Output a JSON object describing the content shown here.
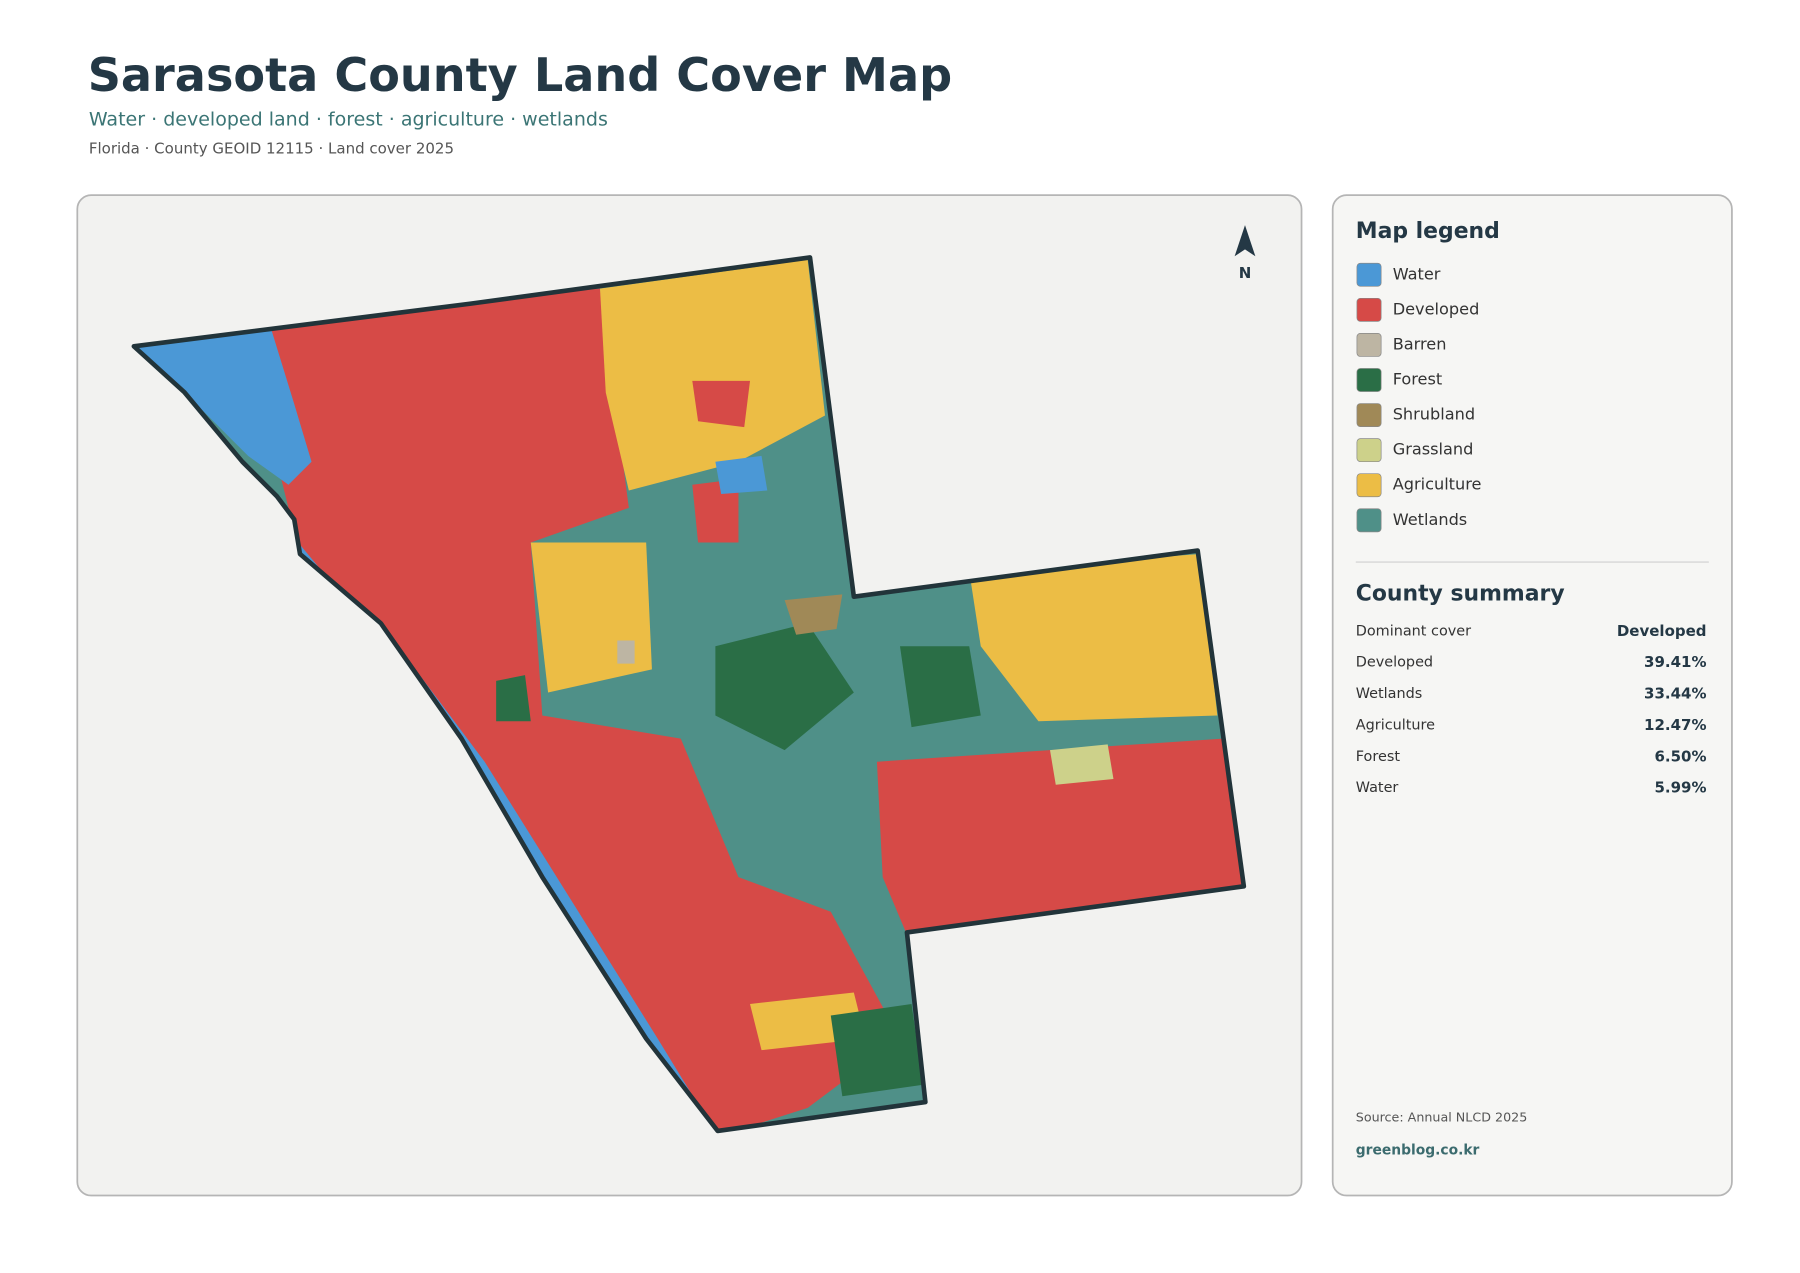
{
  "header": {
    "title": "Sarasota County Land Cover Map",
    "subtitle": "Water · developed land · forest · agriculture · wetlands",
    "meta": "Florida · County GEOID 12115 · Land cover 2025"
  },
  "map": {
    "north_label": "N"
  },
  "legend": {
    "title": "Map legend",
    "items": [
      {
        "name": "Water",
        "color": "#4b98d6"
      },
      {
        "name": "Developed",
        "color": "#d64a47"
      },
      {
        "name": "Barren",
        "color": "#bdb5a3"
      },
      {
        "name": "Forest",
        "color": "#2a6e46"
      },
      {
        "name": "Shrubland",
        "color": "#a08957"
      },
      {
        "name": "Grassland",
        "color": "#cdd18a"
      },
      {
        "name": "Agriculture",
        "color": "#ecbd45"
      },
      {
        "name": "Wetlands",
        "color": "#4f9088"
      }
    ]
  },
  "summary": {
    "title": "County summary",
    "rows": [
      [
        "Dominant cover",
        "Developed"
      ],
      [
        "Developed",
        "39.41%"
      ],
      [
        "Wetlands",
        "33.44%"
      ],
      [
        "Agriculture",
        "12.47%"
      ],
      [
        "Forest",
        "6.50%"
      ],
      [
        "Water",
        "5.99%"
      ]
    ]
  },
  "footer": {
    "source": "Source: Annual NLCD 2025",
    "site": "greenblog.co.kr"
  }
}
